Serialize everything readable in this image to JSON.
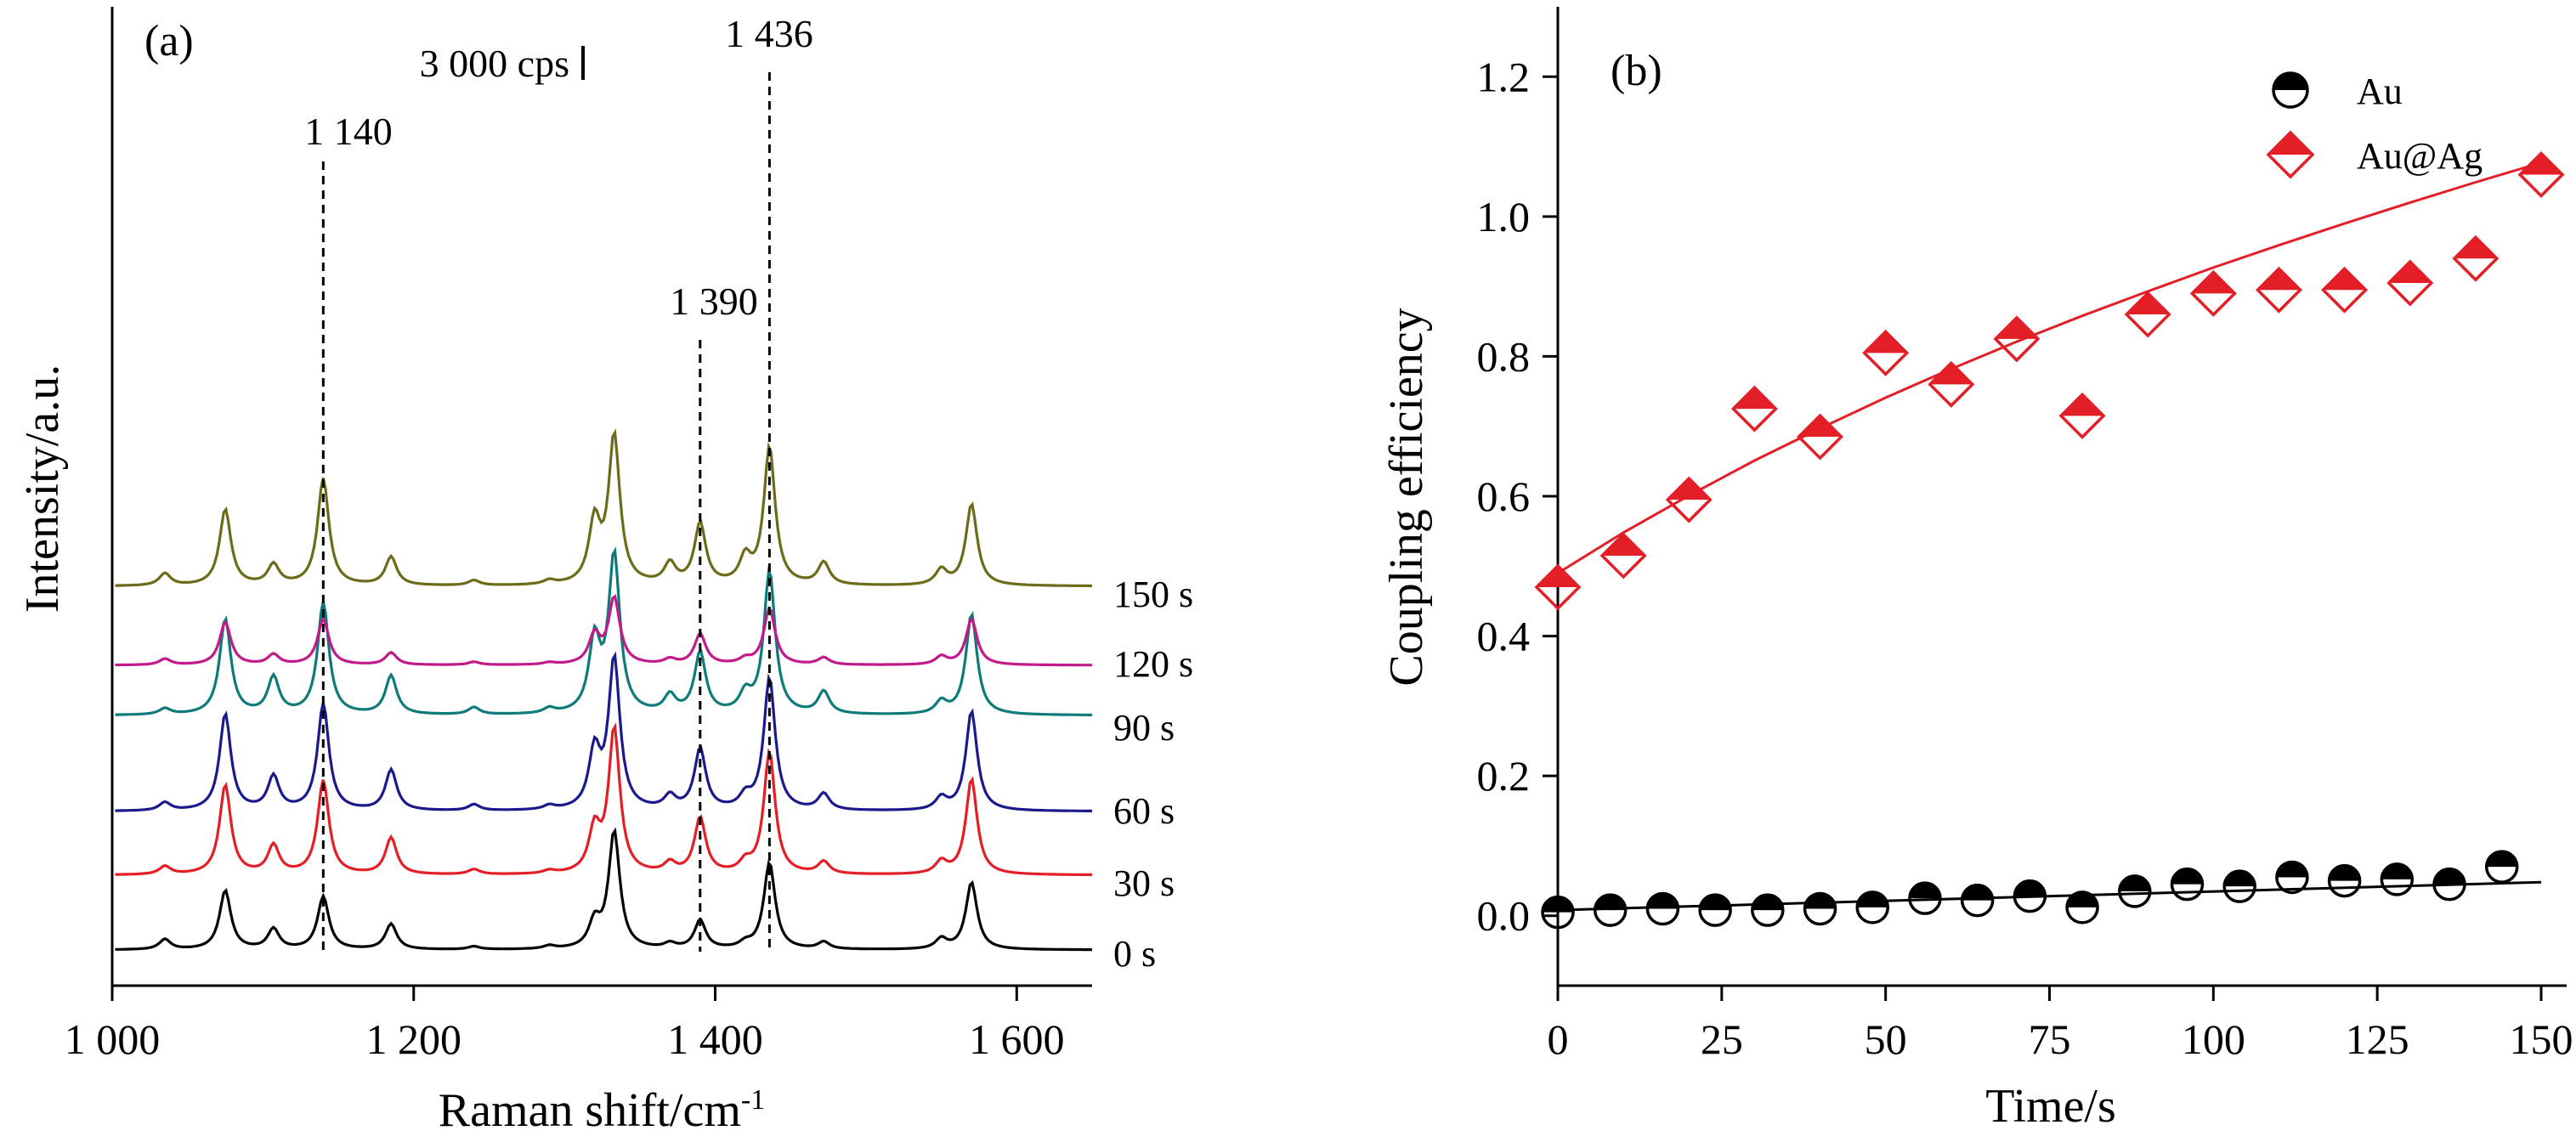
{
  "chart_data": [
    {
      "id": "a",
      "type": "line",
      "panel_label": "(a)",
      "xlabel": "Raman shift/cm",
      "xlabel_sup": "-1",
      "ylabel": "Intensity/a.u.",
      "xlim": [
        1000,
        1650
      ],
      "xticks": [
        1000,
        1200,
        1400,
        1600
      ],
      "xtick_labels": [
        "1 000",
        "1 200",
        "1 400",
        "1 600"
      ],
      "scale_bar_label": "3 000 cps",
      "peak_labels": [
        {
          "text": "1 140",
          "x": 1140
        },
        {
          "text": "1 390",
          "x": 1390
        },
        {
          "text": "1 436",
          "x": 1436
        }
      ],
      "peaks_cm": [
        1035,
        1075,
        1107,
        1140,
        1185,
        1240,
        1290,
        1320,
        1333,
        1370,
        1390,
        1420,
        1436,
        1472,
        1550,
        1570
      ],
      "series": [
        {
          "name": "0 s",
          "color": "#000000",
          "amplitudes": [
            0.1,
            0.58,
            0.2,
            0.52,
            0.25,
            0.03,
            0.03,
            0.25,
            1.15,
            0.05,
            0.28,
            0.05,
            0.85,
            0.07,
            0.1,
            0.66
          ]
        },
        {
          "name": "30 s",
          "color": "#e41e26",
          "amplitudes": [
            0.08,
            0.88,
            0.28,
            0.92,
            0.36,
            0.05,
            0.03,
            0.42,
            1.42,
            0.1,
            0.55,
            0.1,
            1.2,
            0.12,
            0.12,
            0.94
          ]
        },
        {
          "name": "60 s",
          "color": "#1a1a8c",
          "amplitudes": [
            0.08,
            0.95,
            0.33,
            1.05,
            0.4,
            0.06,
            0.04,
            0.56,
            1.48,
            0.13,
            0.6,
            0.12,
            1.3,
            0.16,
            0.12,
            0.98
          ]
        },
        {
          "name": "90 s",
          "color": "#0e7a7a",
          "amplitudes": [
            0.06,
            0.94,
            0.36,
            1.1,
            0.38,
            0.07,
            0.05,
            0.7,
            1.55,
            0.17,
            0.6,
            0.18,
            1.4,
            0.22,
            0.12,
            0.99
          ]
        },
        {
          "name": "120 s",
          "color": "#c21a8a",
          "amplitudes": [
            0.06,
            0.42,
            0.1,
            0.45,
            0.12,
            0.03,
            0.02,
            0.28,
            0.65,
            0.05,
            0.3,
            0.05,
            0.55,
            0.07,
            0.08,
            0.45
          ]
        },
        {
          "name": "150 s",
          "color": "#6b6b1a",
          "amplitudes": [
            0.12,
            0.75,
            0.2,
            1.05,
            0.28,
            0.05,
            0.04,
            0.6,
            1.45,
            0.2,
            0.6,
            0.25,
            1.35,
            0.22,
            0.15,
            0.8
          ]
        }
      ]
    },
    {
      "id": "b",
      "type": "scatter",
      "panel_label": "(b)",
      "xlabel": "Time/s",
      "ylabel": "Coupling efficiency",
      "xlim": [
        0,
        150
      ],
      "ylim": [
        -0.1,
        1.3
      ],
      "xticks": [
        0,
        25,
        50,
        75,
        100,
        125,
        150
      ],
      "yticks": [
        0.0,
        0.2,
        0.4,
        0.6,
        0.8,
        1.0,
        1.2
      ],
      "ytick_labels": [
        "0.0",
        "0.2",
        "0.4",
        "0.6",
        "0.8",
        "1.0",
        "1.2"
      ],
      "legend_position": "top-right",
      "series": [
        {
          "name": "Au",
          "marker": "half-filled-circle",
          "color": "#000000",
          "x": [
            0,
            8,
            16,
            24,
            32,
            40,
            48,
            56,
            64,
            72,
            80,
            88,
            96,
            104,
            112,
            120,
            128,
            136,
            144
          ],
          "y": [
            0.005,
            0.008,
            0.01,
            0.008,
            0.008,
            0.01,
            0.012,
            0.025,
            0.022,
            0.028,
            0.012,
            0.035,
            0.045,
            0.042,
            0.055,
            0.05,
            0.052,
            0.045,
            0.07
          ],
          "fit": {
            "type": "linear",
            "x": [
              0,
              150
            ],
            "y": [
              0.008,
              0.048
            ]
          }
        },
        {
          "name": "Au@Ag",
          "marker": "half-filled-diamond",
          "color": "#e41e26",
          "x": [
            0,
            10,
            20,
            30,
            40,
            50,
            60,
            70,
            80,
            90,
            100,
            110,
            120,
            130,
            140,
            150
          ],
          "y": [
            0.47,
            0.515,
            0.595,
            0.725,
            0.685,
            0.805,
            0.76,
            0.825,
            0.715,
            0.86,
            0.89,
            0.895,
            0.895,
            0.905,
            0.94,
            1.06
          ],
          "fit": {
            "type": "curve",
            "x": [
              0,
              10,
              20,
              30,
              40,
              50,
              60,
              70,
              80,
              90,
              100,
              110,
              120,
              130,
              140,
              150
            ],
            "y": [
              0.49,
              0.548,
              0.601,
              0.651,
              0.697,
              0.741,
              0.782,
              0.821,
              0.858,
              0.893,
              0.927,
              0.959,
              0.99,
              1.02,
              1.049,
              1.077
            ]
          }
        }
      ]
    }
  ]
}
